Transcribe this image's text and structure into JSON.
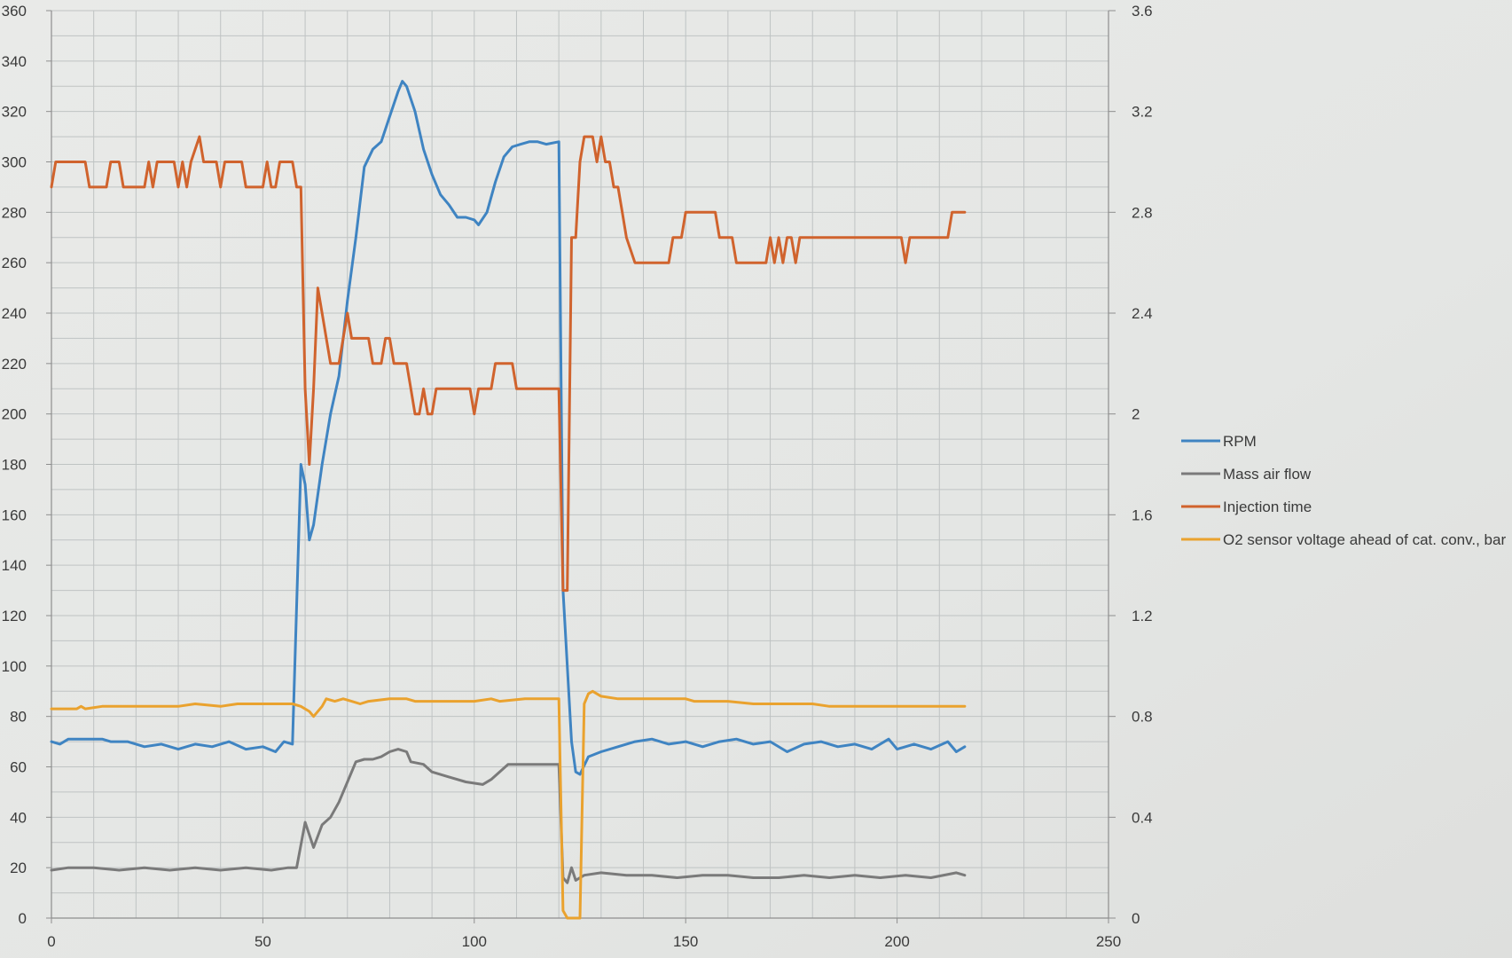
{
  "chart_data": {
    "type": "line",
    "title": "",
    "xlabel": "",
    "ylabel": "",
    "y2label": "",
    "grid": true,
    "legend_position": "right",
    "x_axis": {
      "min": 0,
      "max": 250,
      "ticks": [
        0,
        50,
        100,
        150,
        200,
        250
      ]
    },
    "y_axis": {
      "min": 0,
      "max": 360,
      "ticks": [
        0,
        20,
        40,
        60,
        80,
        100,
        120,
        140,
        160,
        180,
        200,
        220,
        240,
        260,
        280,
        300,
        320,
        340,
        360
      ]
    },
    "y2_axis": {
      "min": 0,
      "max": 3.6,
      "ticks": [
        "0",
        "0.4",
        "0.8",
        "1.2",
        "1.6",
        "2",
        "2.4",
        "2.8",
        "3.2",
        "3.6"
      ]
    },
    "series": [
      {
        "name": "RPM",
        "color": "#3f84c2",
        "axis": "left",
        "points": [
          [
            0,
            70
          ],
          [
            2,
            69
          ],
          [
            4,
            71
          ],
          [
            8,
            71
          ],
          [
            12,
            71
          ],
          [
            14,
            70
          ],
          [
            18,
            70
          ],
          [
            22,
            68
          ],
          [
            26,
            69
          ],
          [
            30,
            67
          ],
          [
            34,
            69
          ],
          [
            38,
            68
          ],
          [
            42,
            70
          ],
          [
            46,
            67
          ],
          [
            50,
            68
          ],
          [
            53,
            66
          ],
          [
            55,
            70
          ],
          [
            57,
            69
          ],
          [
            59,
            180
          ],
          [
            60,
            172
          ],
          [
            61,
            150
          ],
          [
            62,
            156
          ],
          [
            64,
            180
          ],
          [
            66,
            200
          ],
          [
            68,
            215
          ],
          [
            70,
            245
          ],
          [
            72,
            270
          ],
          [
            74,
            298
          ],
          [
            76,
            305
          ],
          [
            78,
            308
          ],
          [
            80,
            318
          ],
          [
            82,
            328
          ],
          [
            83,
            332
          ],
          [
            84,
            330
          ],
          [
            86,
            320
          ],
          [
            88,
            305
          ],
          [
            90,
            295
          ],
          [
            92,
            287
          ],
          [
            94,
            283
          ],
          [
            96,
            278
          ],
          [
            98,
            278
          ],
          [
            100,
            277
          ],
          [
            101,
            275
          ],
          [
            103,
            280
          ],
          [
            105,
            292
          ],
          [
            107,
            302
          ],
          [
            109,
            306
          ],
          [
            111,
            307
          ],
          [
            113,
            308
          ],
          [
            115,
            308
          ],
          [
            117,
            307
          ],
          [
            120,
            308
          ],
          [
            121,
            130
          ],
          [
            122,
            100
          ],
          [
            123,
            70
          ],
          [
            124,
            58
          ],
          [
            125,
            57
          ],
          [
            127,
            64
          ],
          [
            130,
            66
          ],
          [
            134,
            68
          ],
          [
            138,
            70
          ],
          [
            142,
            71
          ],
          [
            146,
            69
          ],
          [
            150,
            70
          ],
          [
            154,
            68
          ],
          [
            158,
            70
          ],
          [
            162,
            71
          ],
          [
            166,
            69
          ],
          [
            170,
            70
          ],
          [
            174,
            66
          ],
          [
            178,
            69
          ],
          [
            182,
            70
          ],
          [
            186,
            68
          ],
          [
            190,
            69
          ],
          [
            194,
            67
          ],
          [
            198,
            71
          ],
          [
            200,
            67
          ],
          [
            204,
            69
          ],
          [
            208,
            67
          ],
          [
            212,
            70
          ],
          [
            214,
            66
          ],
          [
            216,
            68
          ]
        ]
      },
      {
        "name": "Mass air flow",
        "color": "#7a7a7a",
        "axis": "left",
        "points": [
          [
            0,
            19
          ],
          [
            4,
            20
          ],
          [
            10,
            20
          ],
          [
            16,
            19
          ],
          [
            22,
            20
          ],
          [
            28,
            19
          ],
          [
            34,
            20
          ],
          [
            40,
            19
          ],
          [
            46,
            20
          ],
          [
            52,
            19
          ],
          [
            56,
            20
          ],
          [
            58,
            20
          ],
          [
            60,
            38
          ],
          [
            62,
            28
          ],
          [
            64,
            37
          ],
          [
            66,
            40
          ],
          [
            68,
            46
          ],
          [
            70,
            54
          ],
          [
            72,
            62
          ],
          [
            74,
            63
          ],
          [
            76,
            63
          ],
          [
            78,
            64
          ],
          [
            80,
            66
          ],
          [
            82,
            67
          ],
          [
            84,
            66
          ],
          [
            85,
            62
          ],
          [
            88,
            61
          ],
          [
            90,
            58
          ],
          [
            94,
            56
          ],
          [
            98,
            54
          ],
          [
            102,
            53
          ],
          [
            104,
            55
          ],
          [
            106,
            58
          ],
          [
            108,
            61
          ],
          [
            112,
            61
          ],
          [
            116,
            61
          ],
          [
            120,
            61
          ],
          [
            121,
            16
          ],
          [
            122,
            14
          ],
          [
            123,
            20
          ],
          [
            124,
            15
          ],
          [
            126,
            17
          ],
          [
            130,
            18
          ],
          [
            136,
            17
          ],
          [
            142,
            17
          ],
          [
            148,
            16
          ],
          [
            154,
            17
          ],
          [
            160,
            17
          ],
          [
            166,
            16
          ],
          [
            172,
            16
          ],
          [
            178,
            17
          ],
          [
            184,
            16
          ],
          [
            190,
            17
          ],
          [
            196,
            16
          ],
          [
            202,
            17
          ],
          [
            208,
            16
          ],
          [
            214,
            18
          ],
          [
            216,
            17
          ]
        ]
      },
      {
        "name": "Injection time",
        "color": "#d0632d",
        "axis": "left",
        "points": [
          [
            0,
            290
          ],
          [
            1,
            300
          ],
          [
            8,
            300
          ],
          [
            9,
            290
          ],
          [
            13,
            290
          ],
          [
            14,
            300
          ],
          [
            16,
            300
          ],
          [
            17,
            290
          ],
          [
            22,
            290
          ],
          [
            23,
            300
          ],
          [
            24,
            290
          ],
          [
            25,
            300
          ],
          [
            29,
            300
          ],
          [
            30,
            290
          ],
          [
            31,
            300
          ],
          [
            32,
            290
          ],
          [
            33,
            300
          ],
          [
            35,
            310
          ],
          [
            36,
            300
          ],
          [
            39,
            300
          ],
          [
            40,
            290
          ],
          [
            41,
            300
          ],
          [
            45,
            300
          ],
          [
            46,
            290
          ],
          [
            50,
            290
          ],
          [
            51,
            300
          ],
          [
            52,
            290
          ],
          [
            53,
            290
          ],
          [
            54,
            300
          ],
          [
            57,
            300
          ],
          [
            58,
            290
          ],
          [
            59,
            290
          ],
          [
            60,
            210
          ],
          [
            61,
            180
          ],
          [
            62,
            210
          ],
          [
            63,
            250
          ],
          [
            64,
            240
          ],
          [
            66,
            220
          ],
          [
            68,
            220
          ],
          [
            69,
            230
          ],
          [
            70,
            240
          ],
          [
            71,
            230
          ],
          [
            75,
            230
          ],
          [
            76,
            220
          ],
          [
            78,
            220
          ],
          [
            79,
            230
          ],
          [
            80,
            230
          ],
          [
            81,
            220
          ],
          [
            84,
            220
          ],
          [
            85,
            210
          ],
          [
            86,
            200
          ],
          [
            87,
            200
          ],
          [
            88,
            210
          ],
          [
            89,
            200
          ],
          [
            90,
            200
          ],
          [
            91,
            210
          ],
          [
            99,
            210
          ],
          [
            100,
            200
          ],
          [
            101,
            210
          ],
          [
            104,
            210
          ],
          [
            105,
            220
          ],
          [
            109,
            220
          ],
          [
            110,
            210
          ],
          [
            120,
            210
          ],
          [
            121,
            130
          ],
          [
            122,
            130
          ],
          [
            123,
            270
          ],
          [
            124,
            270
          ],
          [
            125,
            300
          ],
          [
            126,
            310
          ],
          [
            128,
            310
          ],
          [
            129,
            300
          ],
          [
            130,
            310
          ],
          [
            131,
            300
          ],
          [
            132,
            300
          ],
          [
            133,
            290
          ],
          [
            134,
            290
          ],
          [
            135,
            280
          ],
          [
            136,
            270
          ],
          [
            138,
            260
          ],
          [
            146,
            260
          ],
          [
            147,
            270
          ],
          [
            149,
            270
          ],
          [
            150,
            280
          ],
          [
            157,
            280
          ],
          [
            158,
            270
          ],
          [
            161,
            270
          ],
          [
            162,
            260
          ],
          [
            169,
            260
          ],
          [
            170,
            270
          ],
          [
            171,
            260
          ],
          [
            172,
            270
          ],
          [
            173,
            260
          ],
          [
            174,
            270
          ],
          [
            175,
            270
          ],
          [
            176,
            260
          ],
          [
            177,
            270
          ],
          [
            201,
            270
          ],
          [
            202,
            260
          ],
          [
            203,
            270
          ],
          [
            212,
            270
          ],
          [
            213,
            280
          ],
          [
            216,
            280
          ]
        ]
      },
      {
        "name": "O2 sensor voltage ahead of cat. conv., bar",
        "color": "#eaa22e",
        "axis": "right",
        "points": [
          [
            0,
            0.83
          ],
          [
            6,
            0.83
          ],
          [
            7,
            0.84
          ],
          [
            8,
            0.83
          ],
          [
            12,
            0.84
          ],
          [
            30,
            0.84
          ],
          [
            34,
            0.85
          ],
          [
            40,
            0.84
          ],
          [
            44,
            0.85
          ],
          [
            56,
            0.85
          ],
          [
            57,
            0.85
          ],
          [
            59,
            0.84
          ],
          [
            61,
            0.82
          ],
          [
            62,
            0.8
          ],
          [
            64,
            0.84
          ],
          [
            65,
            0.87
          ],
          [
            67,
            0.86
          ],
          [
            69,
            0.87
          ],
          [
            71,
            0.86
          ],
          [
            73,
            0.85
          ],
          [
            75,
            0.86
          ],
          [
            80,
            0.87
          ],
          [
            84,
            0.87
          ],
          [
            86,
            0.86
          ],
          [
            100,
            0.86
          ],
          [
            104,
            0.87
          ],
          [
            106,
            0.86
          ],
          [
            112,
            0.87
          ],
          [
            120,
            0.87
          ],
          [
            121,
            0.03
          ],
          [
            122,
            0.0
          ],
          [
            125,
            0.0
          ],
          [
            126,
            0.85
          ],
          [
            127,
            0.89
          ],
          [
            128,
            0.9
          ],
          [
            130,
            0.88
          ],
          [
            134,
            0.87
          ],
          [
            150,
            0.87
          ],
          [
            152,
            0.86
          ],
          [
            160,
            0.86
          ],
          [
            166,
            0.85
          ],
          [
            180,
            0.85
          ],
          [
            184,
            0.84
          ],
          [
            200,
            0.84
          ],
          [
            216,
            0.84
          ]
        ]
      }
    ]
  }
}
